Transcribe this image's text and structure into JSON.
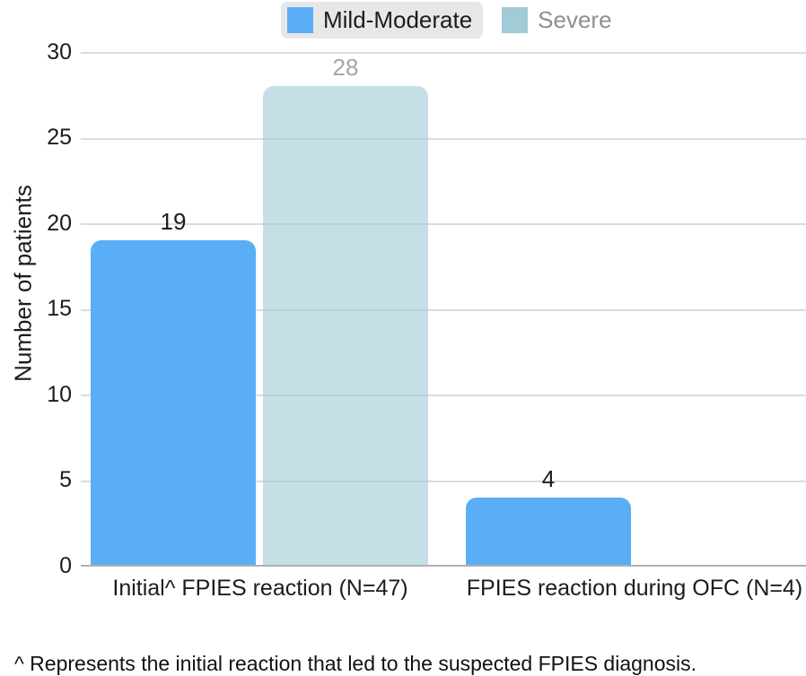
{
  "chart_data": {
    "type": "bar",
    "title": "",
    "categories": [
      "Initial^ FPIES reaction (N=47)",
      "FPIES reaction during OFC (N=4)"
    ],
    "series": [
      {
        "name": "Mild-Moderate",
        "values": [
          19,
          4
        ],
        "color": "#5aaef6"
      },
      {
        "name": "Severe",
        "values": [
          28,
          0
        ],
        "color": "#a2cbd8"
      }
    ],
    "xlabel": "",
    "ylabel": "Number of patients",
    "ylim": [
      0,
      30
    ],
    "yticks": [
      0,
      5,
      10,
      15,
      20,
      25,
      30
    ],
    "grid": true,
    "legend_position": "top",
    "value_labels": true
  },
  "legend": {
    "items": [
      {
        "label": "Mild-Moderate",
        "swatch_color": "#5aaef6",
        "highlighted": true
      },
      {
        "label": "Severe",
        "swatch_color": "#a2cbd8",
        "highlighted": false
      }
    ]
  },
  "y_axis": {
    "title": "Number of patients",
    "ticks": [
      "30",
      "25",
      "20",
      "15",
      "10",
      "5",
      "0"
    ]
  },
  "x_axis": {
    "labels": [
      "Initial^ FPIES reaction (N=47)",
      "FPIES reaction during OFC (N=4)"
    ]
  },
  "footnote": "^ Represents the initial reaction that led to the suspected FPIES diagnosis.",
  "colors": {
    "mild_moderate": "#5aaef6",
    "severe_swatch": "#a2cbd8",
    "severe_bar": "rgba(162,203,216,0.62)",
    "gridline": "#dcdcdc",
    "baseline": "#b0b0b0",
    "muted_text": "#8f8f8f",
    "legend_highlight_bg": "#e7e7e7"
  }
}
